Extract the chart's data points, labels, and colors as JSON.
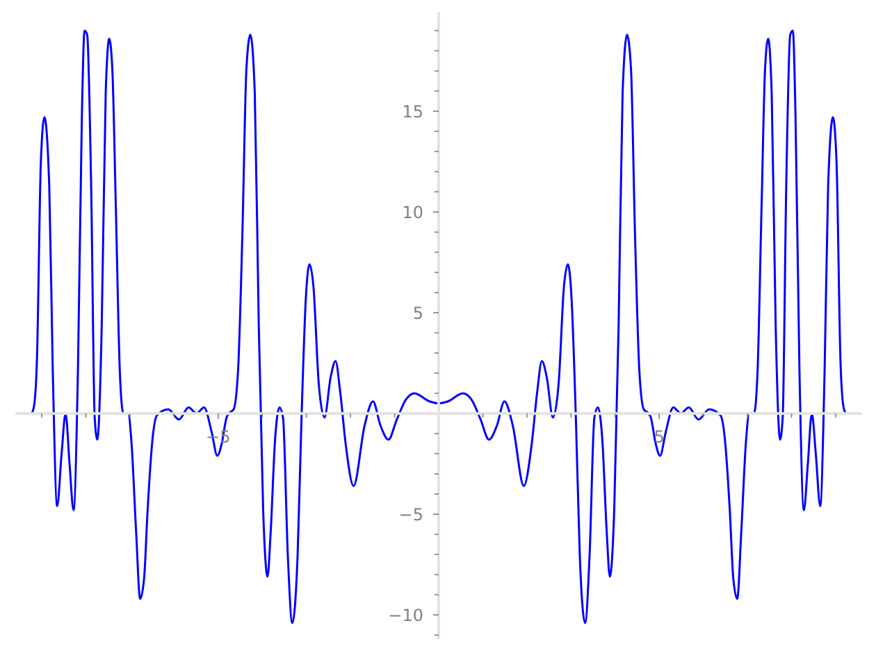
{
  "chart_data": {
    "type": "line",
    "color": "#0000ff",
    "x": [
      -9.23,
      -9.18,
      -9.11,
      -9.02,
      -8.94,
      -8.83,
      -8.75,
      -8.65,
      -8.55,
      -8.46,
      -8.37,
      -8.28,
      -8.18,
      -8.09,
      -8.03,
      -7.97,
      -7.88,
      -7.8,
      -7.74,
      -7.64,
      -7.55,
      -7.47,
      -7.4,
      -7.32,
      -7.23,
      -7.15,
      -7.04,
      -6.97,
      -6.86,
      -6.77,
      -6.68,
      -6.6,
      -6.49,
      -6.39,
      -6.13,
      -5.89,
      -5.67,
      -5.49,
      -5.32,
      -5.15,
      -5.02,
      -4.92,
      -4.81,
      -4.76,
      -4.65,
      -4.55,
      -4.45,
      -4.36,
      -4.27,
      -4.17,
      -4.08,
      -3.98,
      -3.88,
      -3.81,
      -3.71,
      -3.61,
      -3.53,
      -3.42,
      -3.32,
      -3.2,
      -3.11,
      -3.01,
      -2.93,
      -2.84,
      -2.72,
      -2.59,
      -2.45,
      -2.34,
      -2.23,
      -2.11,
      -1.93,
      -1.68,
      -1.49,
      -1.32,
      -1.14,
      -0.95,
      -0.74,
      -0.55,
      -0.21,
      0,
      0.21,
      0.55,
      0.74,
      0.95,
      1.14,
      1.32,
      1.49,
      1.68,
      1.93,
      2.11,
      2.23,
      2.34,
      2.45,
      2.59,
      2.72,
      2.84,
      2.93,
      3.01,
      3.11,
      3.2,
      3.32,
      3.42,
      3.53,
      3.61,
      3.71,
      3.81,
      3.88,
      3.98,
      4.08,
      4.17,
      4.27,
      4.36,
      4.45,
      4.55,
      4.65,
      4.76,
      4.81,
      4.92,
      5.02,
      5.15,
      5.32,
      5.49,
      5.67,
      5.89,
      6.13,
      6.39,
      6.49,
      6.6,
      6.68,
      6.77,
      6.86,
      6.97,
      7.04,
      7.15,
      7.23,
      7.32,
      7.4,
      7.47,
      7.55,
      7.64,
      7.74,
      7.8,
      7.88,
      7.97,
      8.03,
      8.09,
      8.18,
      8.28,
      8.37,
      8.46,
      8.55,
      8.65,
      8.75,
      8.83,
      8.94,
      9.02,
      9.11,
      9.18,
      9.23
    ],
    "values": [
      0,
      0.3,
      2.6,
      12.5,
      14.7,
      11.3,
      2.1,
      -4.6,
      -2.0,
      0,
      -2.5,
      -4.8,
      2.1,
      14.8,
      19.0,
      18.8,
      11.3,
      -0.2,
      -1.3,
      4.4,
      15.9,
      18.6,
      17.1,
      10.2,
      2.1,
      0,
      0,
      -1.3,
      -5.9,
      -9.2,
      -8.2,
      -4.8,
      -1.3,
      -0.1,
      0.2,
      -0.3,
      0.3,
      0,
      0.3,
      -0.9,
      -2.1,
      -1.5,
      -0.2,
      0,
      0.2,
      2.1,
      9.0,
      17.1,
      18.8,
      15.9,
      4.4,
      -4.8,
      -8.1,
      -5.9,
      -1.3,
      0.3,
      -0.2,
      -7.1,
      -10.4,
      -7.1,
      -0.2,
      5.8,
      7.4,
      6.3,
      1.5,
      -0.2,
      1.8,
      2.6,
      1.0,
      -1.5,
      -3.6,
      -0.6,
      0.6,
      -0.6,
      -1.3,
      -0.3,
      0.7,
      1.0,
      0.6,
      0.5,
      0.6,
      1.0,
      0.7,
      -0.3,
      -1.3,
      -0.6,
      0.6,
      -0.6,
      -3.6,
      -1.5,
      1.0,
      2.6,
      1.8,
      -0.2,
      1.5,
      6.3,
      7.4,
      5.8,
      -0.2,
      -7.1,
      -10.4,
      -7.1,
      -0.2,
      0.3,
      -1.3,
      -5.9,
      -8.1,
      -4.8,
      4.4,
      15.9,
      18.8,
      17.1,
      9.0,
      2.1,
      0.2,
      0,
      -0.2,
      -1.5,
      -2.1,
      -0.9,
      0.3,
      0,
      0.3,
      -0.3,
      0.2,
      -0.1,
      -1.3,
      -4.8,
      -8.2,
      -9.2,
      -5.9,
      -1.3,
      0,
      0,
      2.1,
      10.2,
      17.1,
      18.6,
      15.9,
      4.4,
      -1.3,
      -0.2,
      11.3,
      18.8,
      19.0,
      14.8,
      2.1,
      -4.8,
      -2.5,
      0,
      -2.0,
      -4.6,
      2.1,
      11.3,
      14.7,
      12.5,
      2.6,
      0.3,
      0
    ],
    "xlim": [
      -9.6,
      9.6
    ],
    "xticks": [
      {
        "value": -9,
        "label": null
      },
      {
        "value": -8,
        "label": null
      },
      {
        "value": -7,
        "label": null
      },
      {
        "value": -6,
        "label": null
      },
      {
        "value": -5,
        "label": "−5"
      },
      {
        "value": -4,
        "label": null
      },
      {
        "value": -3,
        "label": null
      },
      {
        "value": -2,
        "label": null
      },
      {
        "value": -1,
        "label": null
      },
      {
        "value": 1,
        "label": null
      },
      {
        "value": 2,
        "label": null
      },
      {
        "value": 3,
        "label": null
      },
      {
        "value": 4,
        "label": null
      },
      5,
      {
        "value": 6,
        "label": null
      },
      {
        "value": 7,
        "label": null
      },
      {
        "value": 8,
        "label": null
      },
      {
        "value": 9,
        "label": null
      }
    ],
    "ylim": [
      -11.2,
      19.9
    ],
    "yticks": [
      {
        "value": -11,
        "label": null
      },
      {
        "value": -10,
        "label": "−10"
      },
      {
        "value": -9,
        "label": null
      },
      {
        "value": -8,
        "label": null
      },
      {
        "value": -7,
        "label": null
      },
      {
        "value": -6,
        "label": null
      },
      {
        "value": -5,
        "label": "−5"
      },
      {
        "value": -4,
        "label": null
      },
      {
        "value": -3,
        "label": null
      },
      {
        "value": -2,
        "label": null
      },
      {
        "value": -1,
        "label": null
      },
      {
        "value": 1,
        "label": null
      },
      {
        "value": 2,
        "label": null
      },
      {
        "value": 3,
        "label": null
      },
      {
        "value": 4,
        "label": null
      },
      5,
      {
        "value": 6,
        "label": null
      },
      {
        "value": 7,
        "label": null
      },
      {
        "value": 8,
        "label": null
      },
      {
        "value": 9,
        "label": null
      },
      10,
      {
        "value": 11,
        "label": null
      },
      {
        "value": 12,
        "label": null
      },
      {
        "value": 13,
        "label": null
      },
      {
        "value": 14,
        "label": null
      },
      15,
      {
        "value": 16,
        "label": null
      },
      {
        "value": 17,
        "label": null
      },
      {
        "value": 18,
        "label": null
      },
      {
        "value": 19,
        "label": null
      }
    ]
  }
}
